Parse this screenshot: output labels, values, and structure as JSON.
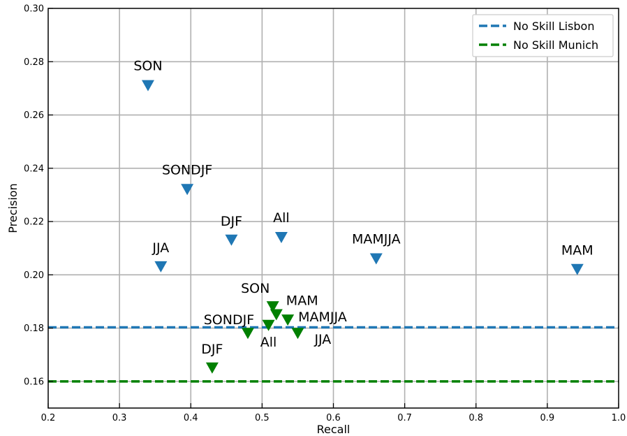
{
  "chart_data": {
    "type": "scatter",
    "title": "",
    "xlabel": "Recall",
    "ylabel": "Precision",
    "xlim": [
      0.2,
      1.0
    ],
    "ylim": [
      0.15,
      0.3
    ],
    "xticks": [
      "0.2",
      "0.3",
      "0.4",
      "0.5",
      "0.6",
      "0.7",
      "0.8",
      "0.9",
      "1.0"
    ],
    "yticks": [
      "0.16",
      "0.18",
      "0.20",
      "0.22",
      "0.24",
      "0.26",
      "0.28",
      "0.30"
    ],
    "grid": true,
    "legend_position": "top-right",
    "series": [
      {
        "color": "#1f77b4",
        "marker": "triangle-down",
        "points": [
          {
            "label": "SON",
            "x": 0.34,
            "y": 0.271
          },
          {
            "label": "SONDJF",
            "x": 0.395,
            "y": 0.232
          },
          {
            "label": "DJF",
            "x": 0.457,
            "y": 0.213
          },
          {
            "label": "All",
            "x": 0.527,
            "y": 0.214
          },
          {
            "label": "JJA",
            "x": 0.358,
            "y": 0.203
          },
          {
            "label": "MAMJJA",
            "x": 0.66,
            "y": 0.206
          },
          {
            "label": "MAM",
            "x": 0.942,
            "y": 0.202
          }
        ]
      },
      {
        "color": "#008000",
        "marker": "triangle-down",
        "points": [
          {
            "label": "SON",
            "x": 0.515,
            "y": 0.188
          },
          {
            "label": "MAM",
            "x": 0.52,
            "y": 0.185
          },
          {
            "label": "MAMJJA",
            "x": 0.536,
            "y": 0.183
          },
          {
            "label": "SONDJF",
            "x": 0.48,
            "y": 0.178
          },
          {
            "label": "All",
            "x": 0.509,
            "y": 0.181
          },
          {
            "label": "JJA",
            "x": 0.55,
            "y": 0.178
          },
          {
            "label": "DJF",
            "x": 0.43,
            "y": 0.165
          }
        ]
      }
    ],
    "reference_lines": [
      {
        "name": "No Skill Lisbon",
        "y": 0.1803,
        "color": "#1f77b4",
        "style": "dashed"
      },
      {
        "name": "No Skill Munich",
        "y": 0.16,
        "color": "#008000",
        "style": "dashed"
      }
    ]
  }
}
